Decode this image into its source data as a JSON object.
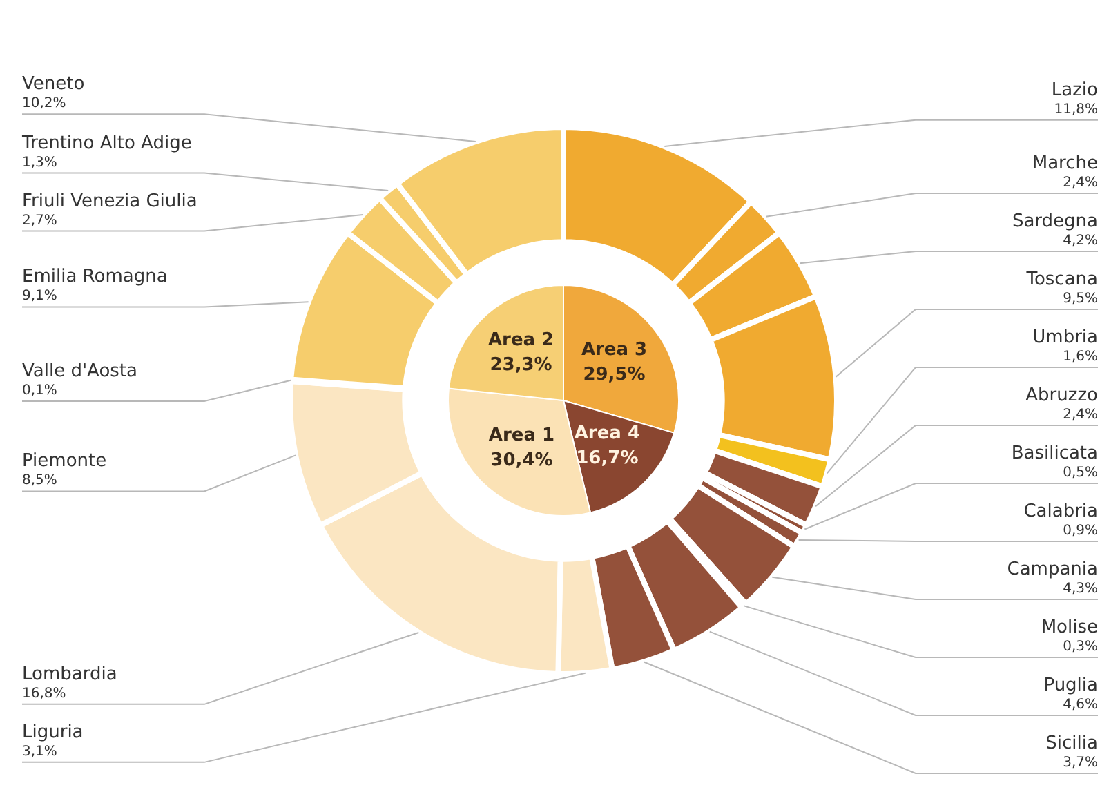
{
  "chart_data": [
    {
      "type": "donut",
      "categories": [
        "Lazio",
        "Marche",
        "Sardegna",
        "Toscana",
        "Umbria",
        "Abruzzo",
        "Basilicata",
        "Calabria",
        "Campania",
        "Molise",
        "Puglia",
        "Sicilia",
        "Liguria",
        "Lombardia",
        "Piemonte",
        "Valle d'Aosta",
        "Emilia Romagna",
        "Friuli Venezia Giulia",
        "Trentino Alto Adige",
        "Veneto"
      ],
      "values": [
        11.8,
        2.4,
        4.2,
        9.5,
        1.6,
        2.4,
        0.5,
        0.9,
        4.3,
        0.3,
        4.6,
        3.7,
        3.1,
        16.8,
        8.5,
        0.1,
        9.1,
        2.7,
        1.3,
        10.2
      ],
      "colors": [
        "#f0aa30",
        "#f0aa30",
        "#f0aa30",
        "#f0aa30",
        "#f3c11e",
        "#94513a",
        "#94513a",
        "#94513a",
        "#94513a",
        "#94513a",
        "#94513a",
        "#94513a",
        "#fbe6c2",
        "#fbe6c2",
        "#fbe6c2",
        "#fbe6c2",
        "#f6cd6c",
        "#f6cd6c",
        "#f6cd6c",
        "#f6cd6c"
      ],
      "value_labels": [
        "11,8%",
        "2,4%",
        "4,2%",
        "9,5%",
        "1,6%",
        "2,4%",
        "0,5%",
        "0,9%",
        "4,3%",
        "0,3%",
        "4,6%",
        "3,7%",
        "3,1%",
        "16,8%",
        "8,5%",
        "0,1%",
        "9,1%",
        "2,7%",
        "1,3%",
        "10,2%"
      ]
    },
    {
      "type": "pie",
      "categories": [
        "Area 3",
        "Area 4",
        "Area 1",
        "Area 2"
      ],
      "values": [
        29.5,
        16.7,
        30.4,
        23.3
      ],
      "colors": [
        "#f0a83c",
        "#8a4630",
        "#fbe2b5",
        "#f6cf74"
      ],
      "value_labels": [
        "29,5%",
        "16,7%",
        "30,4%",
        "23,3%"
      ]
    }
  ]
}
